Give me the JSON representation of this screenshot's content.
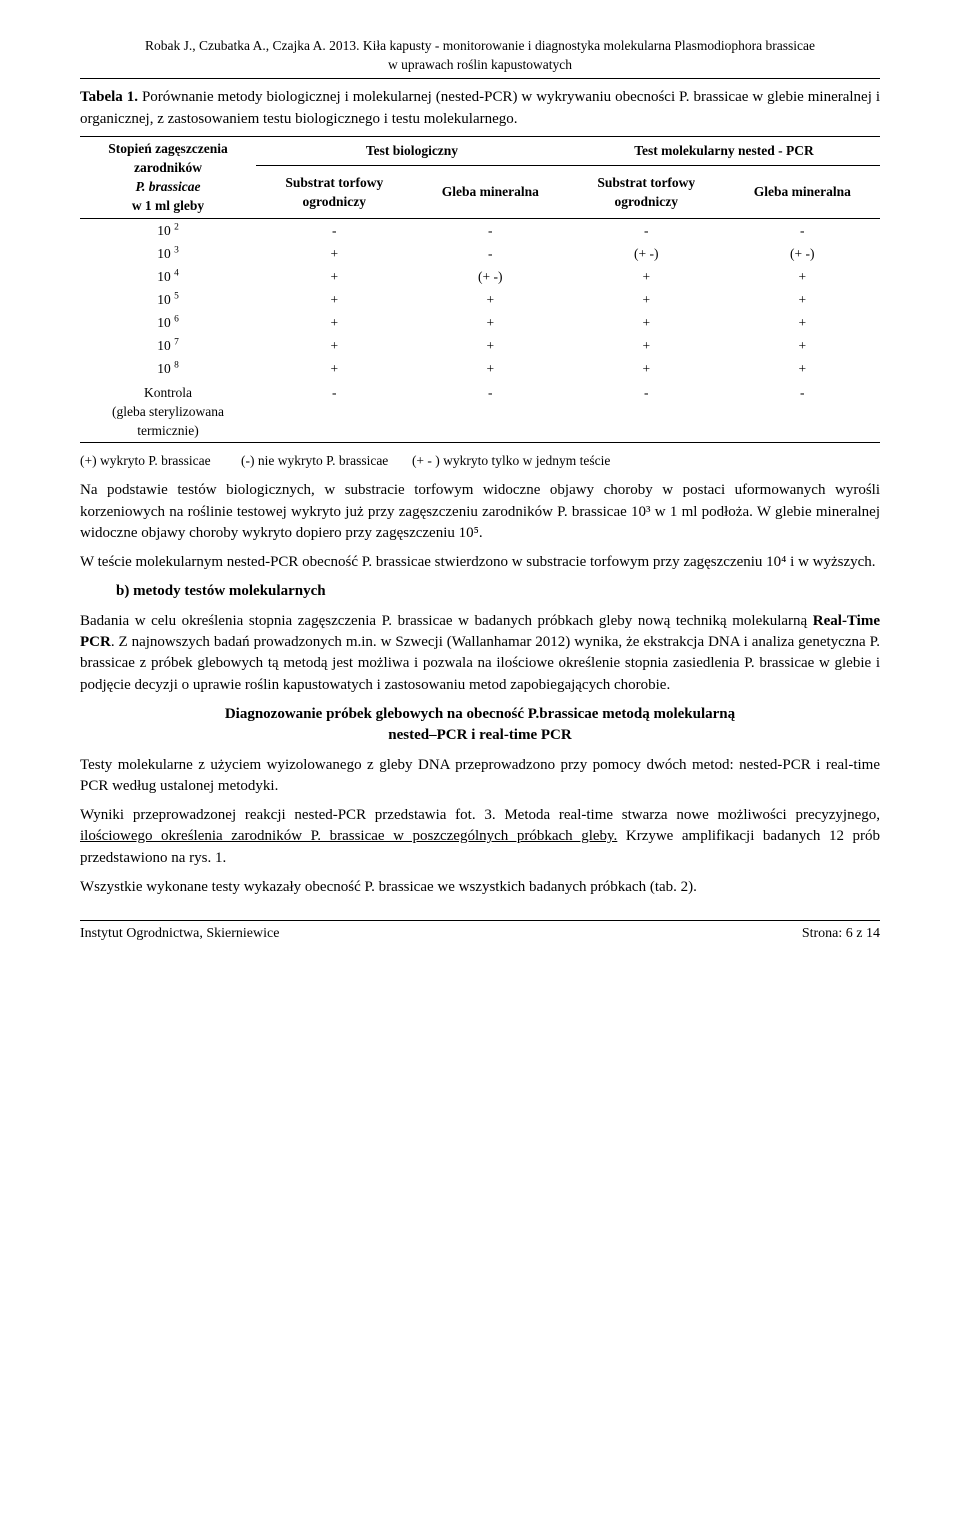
{
  "header": {
    "line1": "Robak J., Czubatka A., Czajka A. 2013. Kiła kapusty - monitorowanie i diagnostyka molekularna Plasmodiophora brassicae",
    "line2": "w uprawach roślin kapustowatych"
  },
  "tableCaption": {
    "lead": "Tabela 1.",
    "text": " Porównanie metody biologicznej i molekularnej (nested-PCR) w wykrywaniu obecności P. brassicae w glebie mineralnej i organicznej, z zastosowaniem testu biologicznego i testu molekularnego."
  },
  "table": {
    "stub": "Stopień zagęszczenia\nzarodników\nP. brassicae\nw 1 ml gleby",
    "group1": "Test biologiczny",
    "group2": "Test molekularny nested - PCR",
    "sub": [
      "Substrat torfowy\nogrodniczy",
      "Gleba mineralna",
      "Substrat torfowy\nogrodniczy",
      "Gleba mineralna"
    ],
    "rows": [
      {
        "label": "10 ",
        "exp": "2",
        "c": [
          "-",
          "-",
          "-",
          "-"
        ]
      },
      {
        "label": "10 ",
        "exp": "3",
        "c": [
          "+",
          "-",
          "(+ -)",
          "(+ -)"
        ]
      },
      {
        "label": "10 ",
        "exp": "4",
        "c": [
          "+",
          "(+ -)",
          "+",
          "+"
        ]
      },
      {
        "label": "10 ",
        "exp": "5",
        "c": [
          "+",
          "+",
          "+",
          "+"
        ]
      },
      {
        "label": "10 ",
        "exp": "6",
        "c": [
          "+",
          "+",
          "+",
          "+"
        ]
      },
      {
        "label": "10 ",
        "exp": "7",
        "c": [
          "+",
          "+",
          "+",
          "+"
        ]
      },
      {
        "label": "10 ",
        "exp": "8",
        "c": [
          "+",
          "+",
          "+",
          "+"
        ]
      }
    ],
    "controlRow": {
      "labelHtml": "Kontrola<br>(gleba sterylizowana<br>termicznie)",
      "c": [
        "-",
        "-",
        "-",
        "-"
      ]
    }
  },
  "legend": {
    "a": "(+)  wykryto P. brassicae",
    "b": "(-) nie wykryto P. brassicae",
    "c": "(+ - )  wykryto tylko w jednym teście"
  },
  "p1": "Na podstawie testów biologicznych, w substracie torfowym widoczne objawy choroby w postaci uformowanych wyrośli korzeniowych na roślinie testowej wykryto już przy zagęszczeniu zarodników P. brassicae 10³ w 1 ml podłoża. W glebie mineralnej widoczne objawy choroby wykryto dopiero przy zagęszczeniu 10⁵.",
  "p2": "W teście molekularnym nested-PCR obecność P. brassicae stwierdzono w substracie torfowym przy zagęszczeniu 10⁴ i w wyższych.",
  "p3head": "b) metody testów molekularnych",
  "p4": "Badania w celu określenia stopnia zagęszczenia P. brassicae w badanych próbkach gleby nową techniką molekularną ",
  "p4b": "Real-Time PCR",
  "p4c": ". Z najnowszych badań prowadzonych m.in. w Szwecji (Wallanhamar 2012) wynika, że ekstrakcja DNA i analiza genetyczna P. brassicae z próbek glebowych tą metodą jest możliwa i pozwala na ilościowe określenie stopnia zasiedlenia P. brassicae w glebie i podjęcie decyzji o uprawie roślin kapustowatych i zastosowaniu metod zapobiegających chorobie.",
  "centerHead1": "Diagnozowanie próbek glebowych na obecność P.brassicae metodą molekularną",
  "centerHead2": "nested–PCR i real-time PCR",
  "p5": "Testy molekularne z użyciem wyizolowanego z gleby DNA przeprowadzono przy pomocy dwóch metod: nested-PCR i real-time PCR według ustalonej metodyki.",
  "p6a": "Wyniki przeprowadzonej reakcji nested-PCR przedstawia fot. 3. Metoda real-time stwarza nowe możliwości precyzyjnego, ",
  "p6u": "ilościowego  określenia zarodników P. brassicae w poszczególnych próbkach gleby.",
  "p6b": " Krzywe amplifikacji badanych 12 prób przedstawiono na rys. 1.",
  "p7": "Wszystkie wykonane testy wykazały obecność P. brassicae we wszystkich badanych próbkach (tab. 2).",
  "footer": {
    "left": "Instytut Ogrodnictwa, Skierniewice",
    "right": "Strona: 6 z 14"
  }
}
